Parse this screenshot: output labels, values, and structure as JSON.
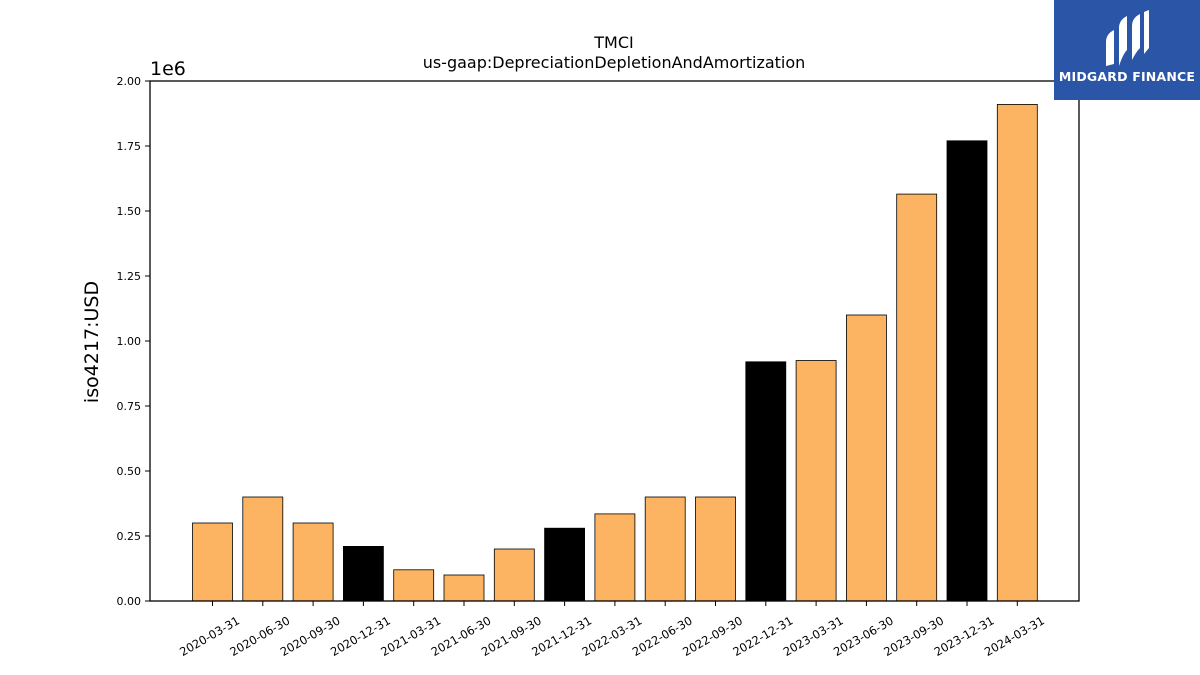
{
  "brand": {
    "name": "MIDGARD FINANCE",
    "icon": "midgard-logo-icon",
    "color": "#2b56a8"
  },
  "chart_data": {
    "type": "bar",
    "title": "TMCI",
    "subtitle": "us-gaap:DepreciationDepletionAndAmortization",
    "xlabel": "",
    "ylabel": "iso4217:USD",
    "y_multiplier": "1e6",
    "ylim": [
      0,
      2.0
    ],
    "yticks": [
      "0.00",
      "0.25",
      "0.50",
      "0.75",
      "1.00",
      "1.25",
      "1.50",
      "1.75",
      "2.00"
    ],
    "grid": false,
    "categories": [
      "2020-03-31",
      "2020-06-30",
      "2020-09-30",
      "2020-12-31",
      "2021-03-31",
      "2021-06-30",
      "2021-09-30",
      "2021-12-31",
      "2022-03-31",
      "2022-06-30",
      "2022-09-30",
      "2022-12-31",
      "2023-03-31",
      "2023-06-30",
      "2023-09-30",
      "2023-12-31",
      "2024-03-31"
    ],
    "values": [
      0.3,
      0.4,
      0.3,
      0.21,
      0.12,
      0.1,
      0.2,
      0.28,
      0.335,
      0.4,
      0.4,
      0.92,
      0.925,
      1.1,
      1.565,
      1.77,
      1.91
    ],
    "highlight": [
      false,
      false,
      false,
      true,
      false,
      false,
      false,
      true,
      false,
      false,
      false,
      true,
      false,
      false,
      false,
      true,
      false
    ],
    "colors": {
      "bar": "#fdb462",
      "highlight": "#000000",
      "edge": "#000000"
    }
  }
}
